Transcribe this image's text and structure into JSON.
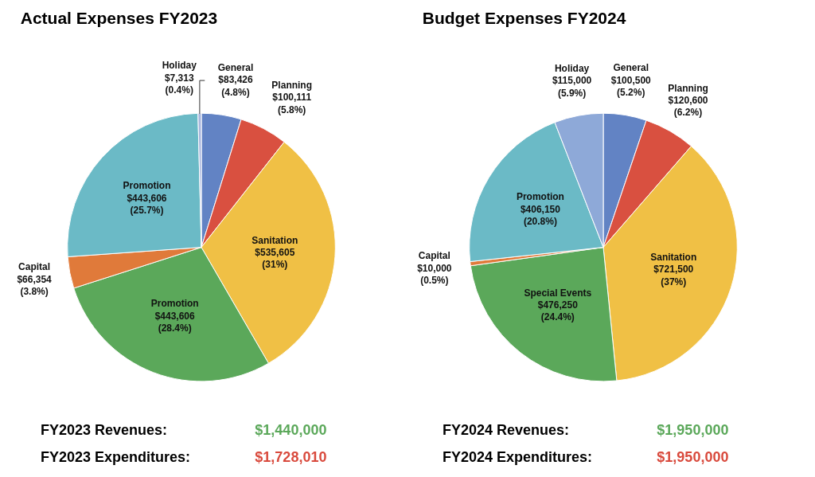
{
  "chart_data": [
    {
      "type": "pie",
      "title": "Actual Expenses FY2023",
      "categories": [
        "General",
        "Planning",
        "Sanitation",
        "Promotion",
        "Capital",
        "Promotion",
        "Holiday"
      ],
      "values": [
        4.8,
        5.8,
        31,
        28.4,
        3.8,
        25.7,
        0.4
      ],
      "colors": [
        "#6283c4",
        "#d95040",
        "#f0c045",
        "#5ba85a",
        "#e07a3a",
        "#6bbac6",
        "#a9b6dd"
      ],
      "value_labels": [
        "$83,426 (4.8%)",
        "$100,111 (5.8%)",
        "$535,605 (31%)",
        "$443,606 (28.4%)",
        "$66,354 (3.8%)",
        "$443,606 (25.7%)",
        "$7,313 (0.4%)"
      ],
      "annotations": [
        "FY2023 Revenues:",
        "$1,440,000",
        "FY2023 Expenditures:",
        "$1,728,010"
      ]
    },
    {
      "type": "pie",
      "title": "Budget Expenses FY2024",
      "categories": [
        "General",
        "Planning",
        "Sanitation",
        "Special Events",
        "Capital",
        "Promotion",
        "Holiday"
      ],
      "values": [
        5.2,
        6.2,
        37,
        24.4,
        0.5,
        20.8,
        5.9
      ],
      "colors": [
        "#6283c4",
        "#d95040",
        "#f0c045",
        "#5ba85a",
        "#e07a3a",
        "#6bbac6",
        "#8ea9d8"
      ],
      "value_labels": [
        "$100,500 (5.2%)",
        "$120,600 (6.2%)",
        "$721,500 (37%)",
        "$476,250 (24.4%)",
        "$10,000 (0.5%)",
        "$406,150 (20.8%)",
        "$115,000 (5.9%)"
      ],
      "annotations": [
        "FY2024 Revenues:",
        "$1,950,000",
        "FY2024 Expenditures:",
        "$1,950,000"
      ]
    }
  ]
}
